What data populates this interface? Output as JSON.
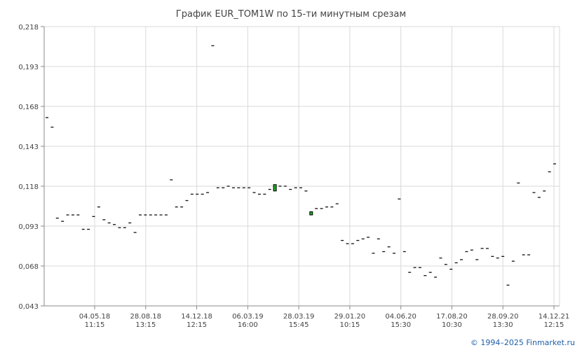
{
  "chart_data": {
    "type": "candlestick",
    "title": "График EUR_TOM1W по 15-ти минутным срезам",
    "ylim": [
      0.043,
      0.218
    ],
    "yticks": [
      "0,218",
      "0,193",
      "0,168",
      "0,143",
      "0,118",
      "0,093",
      "0,068",
      "0,043"
    ],
    "ytick_values": [
      0.218,
      0.193,
      0.168,
      0.143,
      0.118,
      0.093,
      0.068,
      0.043
    ],
    "xticks": [
      {
        "date": "04.05.18",
        "time": "11:15"
      },
      {
        "date": "28.08.18",
        "time": "13:15"
      },
      {
        "date": "14.12.18",
        "time": "12:15"
      },
      {
        "date": "06.03.19",
        "time": "16:00"
      },
      {
        "date": "28.03.19",
        "time": "15:45"
      },
      {
        "date": "29.01.20",
        "time": "10:15"
      },
      {
        "date": "04.06.20",
        "time": "15:30"
      },
      {
        "date": "17.08.20",
        "time": "10:30"
      },
      {
        "date": "28.09.20",
        "time": "13:30"
      },
      {
        "date": "14.12.21",
        "time": "12:15"
      }
    ],
    "grid": true,
    "up_color": "#22aa22",
    "series": [
      {
        "values": [
          0.161,
          0.155,
          0.098,
          0.096,
          0.1,
          0.1,
          0.1,
          0.091,
          0.091,
          0.099,
          0.105,
          0.097,
          0.095,
          0.094,
          0.092,
          0.092,
          0.095,
          0.089,
          0.1,
          0.1,
          0.1,
          0.1,
          0.1,
          0.1,
          0.122,
          0.105,
          0.105,
          0.109,
          0.113,
          0.113,
          0.113,
          0.114,
          0.206,
          0.117,
          0.117,
          0.118,
          0.117,
          0.117,
          0.117,
          0.117,
          0.114,
          0.113,
          0.113,
          0.116,
          0.118,
          0.118,
          0.118,
          0.116,
          0.117,
          0.117,
          0.115,
          0.101,
          0.104,
          0.104,
          0.105,
          0.105,
          0.107,
          0.084,
          0.082,
          0.082,
          0.084,
          0.085,
          0.086,
          0.076,
          0.085,
          0.077,
          0.08,
          0.076,
          0.11,
          0.077,
          0.064,
          0.067,
          0.067,
          0.062,
          0.064,
          0.061,
          0.073,
          0.069,
          0.066,
          0.07,
          0.072,
          0.077,
          0.078,
          0.072,
          0.079,
          0.079,
          0.074,
          0.073,
          0.074,
          0.056,
          0.071,
          0.12,
          0.075,
          0.075,
          0.114,
          0.111,
          0.115,
          0.127,
          0.132
        ],
        "up_bars": [
          {
            "index": 44,
            "open": 0.115,
            "close": 0.119
          },
          {
            "index": 51,
            "open": 0.1,
            "close": 0.102
          }
        ]
      }
    ]
  },
  "footer": {
    "credit": "© 1994–2025 Finmarket.ru"
  }
}
